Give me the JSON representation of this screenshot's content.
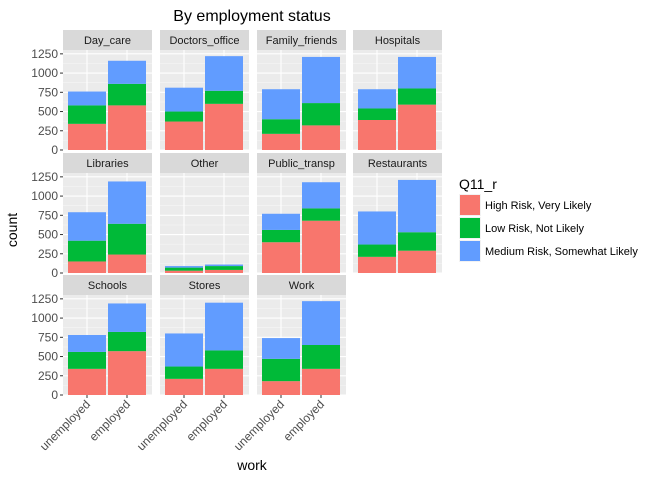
{
  "chart_data": {
    "type": "bar",
    "stacked": true,
    "faceted": true,
    "title": "By employment status",
    "xlabel": "work",
    "ylabel": "count",
    "ylim": [
      0,
      1300
    ],
    "yticks": [
      0,
      250,
      500,
      750,
      1000,
      1250
    ],
    "categories": [
      "unemployed",
      "employed"
    ],
    "legend": {
      "title": "Q11_r",
      "position": "right",
      "entries": [
        {
          "label": "High Risk, Very Likely",
          "color": "#F8766D"
        },
        {
          "label": "Low Risk, Not Likely",
          "color": "#00BA38"
        },
        {
          "label": "Medium Risk, Somewhat Likely",
          "color": "#619CFF"
        }
      ]
    },
    "series_names": [
      "High Risk, Very Likely",
      "Low Risk, Not Likely",
      "Medium Risk, Somewhat Likely"
    ],
    "colors": [
      "#F8766D",
      "#00BA38",
      "#619CFF"
    ],
    "grid": true,
    "panels": [
      {
        "name": "Day_care",
        "values": {
          "unemployed": [
            340,
            240,
            180
          ],
          "employed": [
            580,
            280,
            300
          ]
        }
      },
      {
        "name": "Doctors_office",
        "values": {
          "unemployed": [
            370,
            130,
            310
          ],
          "employed": [
            600,
            170,
            450
          ]
        }
      },
      {
        "name": "Family_friends",
        "values": {
          "unemployed": [
            210,
            190,
            390
          ],
          "employed": [
            320,
            290,
            600
          ]
        }
      },
      {
        "name": "Hospitals",
        "values": {
          "unemployed": [
            390,
            150,
            250
          ],
          "employed": [
            590,
            210,
            410
          ]
        }
      },
      {
        "name": "Libraries",
        "values": {
          "unemployed": [
            150,
            270,
            370
          ],
          "employed": [
            240,
            400,
            550
          ]
        }
      },
      {
        "name": "Other",
        "values": {
          "unemployed": [
            30,
            40,
            20
          ],
          "employed": [
            40,
            50,
            20
          ]
        }
      },
      {
        "name": "Public_transp",
        "values": {
          "unemployed": [
            400,
            160,
            210
          ],
          "employed": [
            680,
            160,
            340
          ]
        }
      },
      {
        "name": "Restaurants",
        "values": {
          "unemployed": [
            210,
            160,
            430
          ],
          "employed": [
            290,
            240,
            680
          ]
        }
      },
      {
        "name": "Schools",
        "values": {
          "unemployed": [
            340,
            220,
            220
          ],
          "employed": [
            570,
            250,
            370
          ]
        }
      },
      {
        "name": "Stores",
        "values": {
          "unemployed": [
            210,
            160,
            430
          ],
          "employed": [
            340,
            240,
            620
          ]
        }
      },
      {
        "name": "Work",
        "values": {
          "unemployed": [
            180,
            290,
            270
          ],
          "employed": [
            340,
            310,
            570
          ]
        }
      }
    ]
  }
}
